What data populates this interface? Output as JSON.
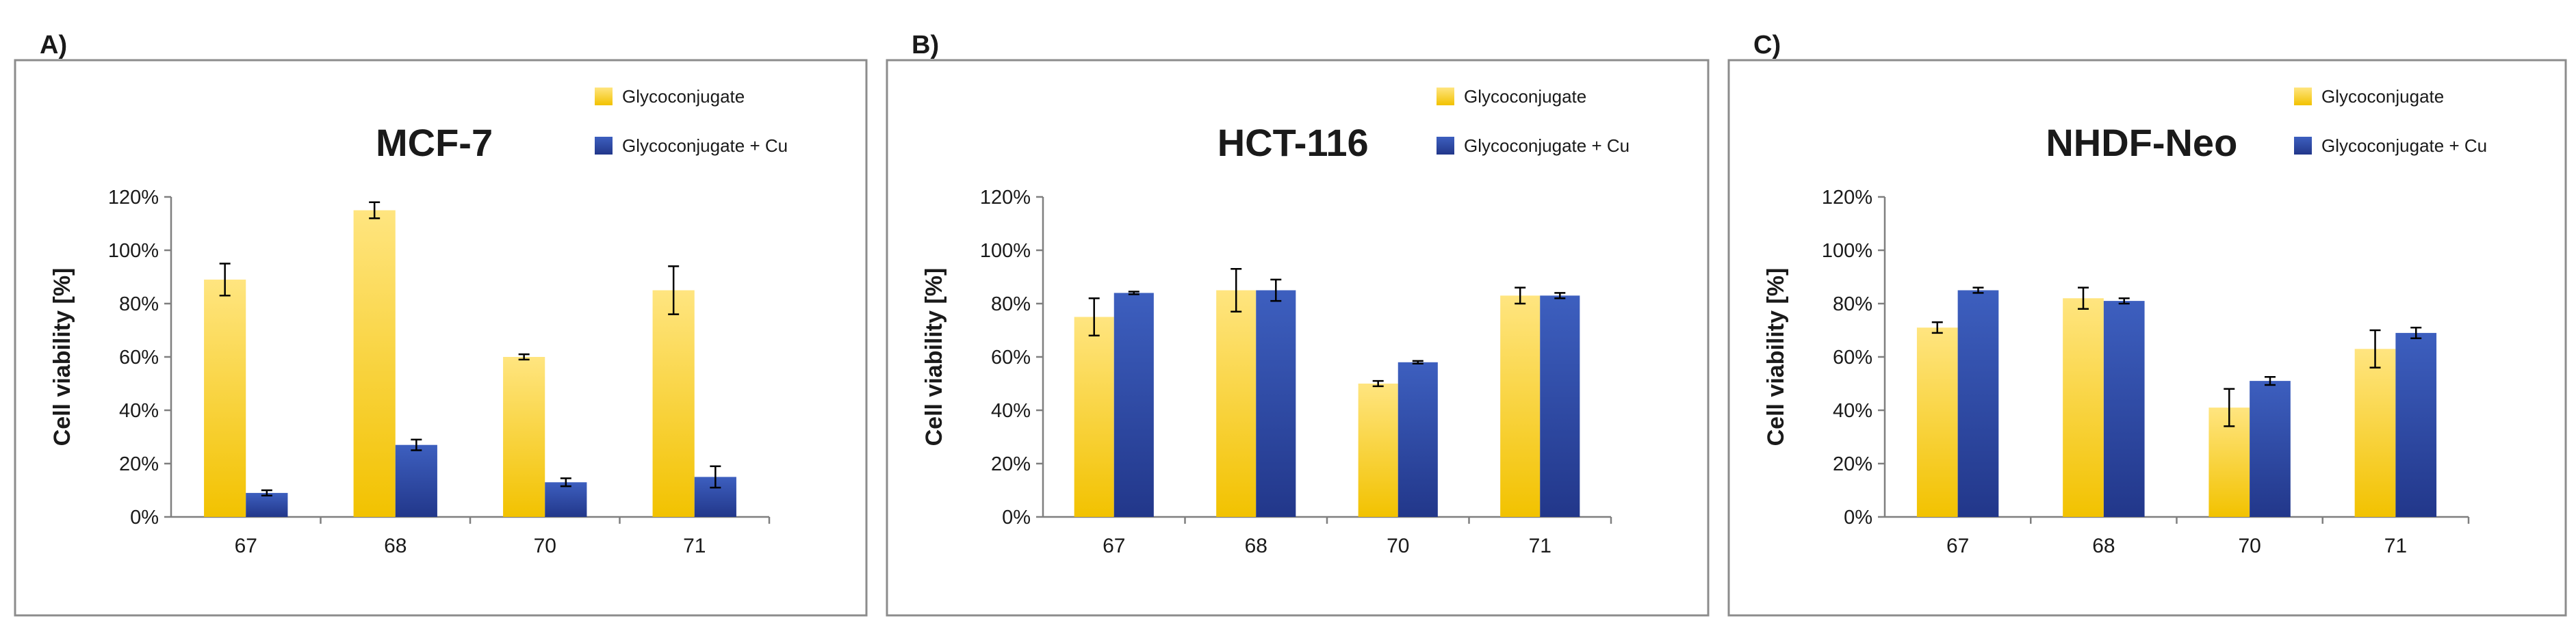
{
  "colors": {
    "series_a": "#f2c200",
    "series_a_light": "#ffe580",
    "series_b": "#3d5fbf",
    "series_b_dark": "#22378a",
    "frame": "#8c8c8c",
    "text": "#1a1a1a"
  },
  "chart_data": [
    {
      "type": "bar",
      "panel_label": "A)",
      "title": "MCF-7",
      "xlabel": "",
      "ylabel": "Cell viability [%]",
      "categories": [
        "67",
        "68",
        "70",
        "71"
      ],
      "yticks": [
        "0%",
        "20%",
        "40%",
        "60%",
        "80%",
        "100%",
        "120%"
      ],
      "ylim": [
        0,
        120
      ],
      "legend_position": "top-right",
      "grid": false,
      "series": [
        {
          "name": "Glycoconjugate",
          "values": [
            89,
            115,
            60,
            85
          ],
          "errors": [
            6,
            3,
            1,
            9
          ]
        },
        {
          "name": "Glycoconjugate + Cu",
          "values": [
            9,
            27,
            13,
            15
          ],
          "errors": [
            1,
            2,
            1.5,
            4
          ]
        }
      ]
    },
    {
      "type": "bar",
      "panel_label": "B)",
      "title": "HCT-116",
      "xlabel": "",
      "ylabel": "Cell viability [%]",
      "categories": [
        "67",
        "68",
        "70",
        "71"
      ],
      "yticks": [
        "0%",
        "20%",
        "40%",
        "60%",
        "80%",
        "100%",
        "120%"
      ],
      "ylim": [
        0,
        120
      ],
      "legend_position": "top-right",
      "grid": false,
      "series": [
        {
          "name": "Glycoconjugate",
          "values": [
            75,
            85,
            50,
            83
          ],
          "errors": [
            7,
            8,
            1,
            3
          ]
        },
        {
          "name": "Glycoconjugate + Cu",
          "values": [
            84,
            85,
            58,
            83
          ],
          "errors": [
            0.5,
            4,
            0.5,
            1
          ]
        }
      ]
    },
    {
      "type": "bar",
      "panel_label": "C)",
      "title": "NHDF-Neo",
      "xlabel": "",
      "ylabel": "Cell viability [%]",
      "categories": [
        "67",
        "68",
        "70",
        "71"
      ],
      "yticks": [
        "0%",
        "20%",
        "40%",
        "60%",
        "80%",
        "100%",
        "120%"
      ],
      "ylim": [
        0,
        120
      ],
      "legend_position": "top-right",
      "grid": false,
      "series": [
        {
          "name": "Glycoconjugate",
          "values": [
            71,
            82,
            41,
            63
          ],
          "errors": [
            2,
            4,
            7,
            7
          ]
        },
        {
          "name": "Glycoconjugate + Cu",
          "values": [
            85,
            81,
            51,
            69
          ],
          "errors": [
            1,
            1,
            1.5,
            2
          ]
        }
      ]
    }
  ]
}
